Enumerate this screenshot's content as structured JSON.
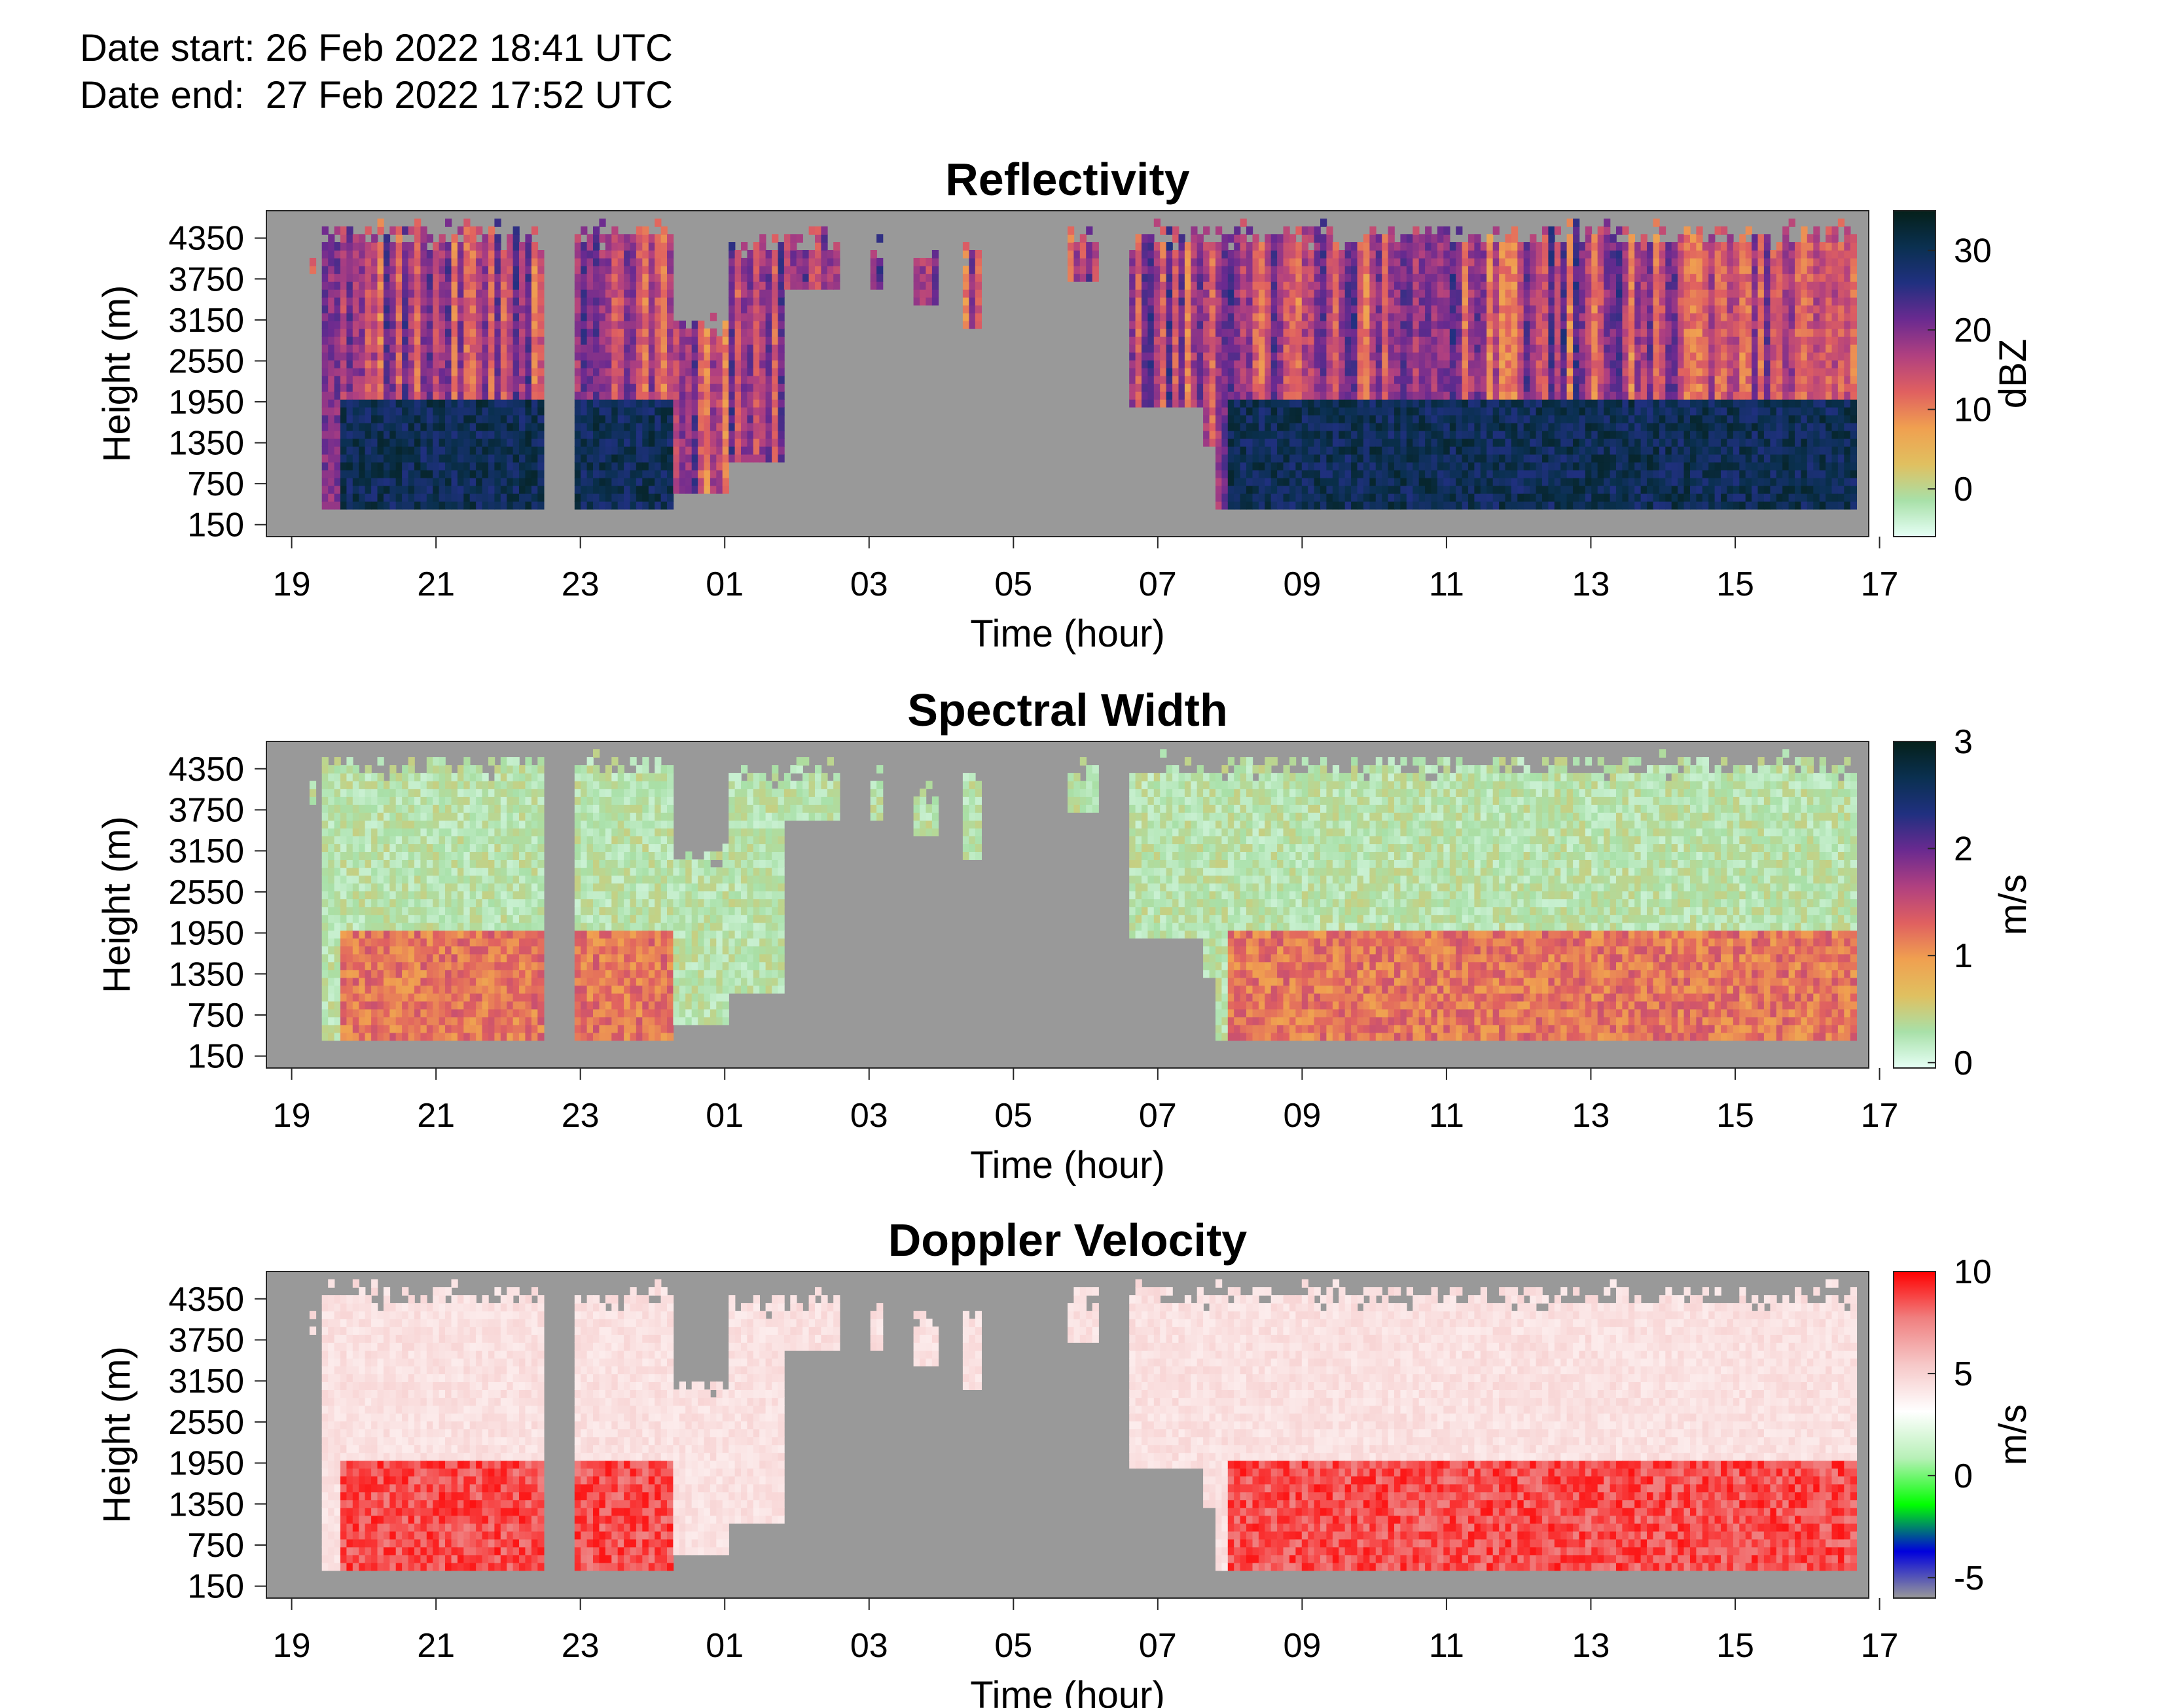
{
  "header": {
    "date_start": "Date start: 26 Feb 2022 18:41 UTC",
    "date_end": "Date end:  27 Feb 2022 17:52 UTC"
  },
  "chart_data": [
    {
      "type": "heatmap",
      "title": "Reflectivity",
      "xlabel": "Time (hour)",
      "ylabel": "Height (m)",
      "colorbar_label": "dBZ",
      "x_ticks": [
        "19",
        "21",
        "23",
        "01",
        "03",
        "05",
        "07",
        "09",
        "11",
        "13",
        "15",
        "17"
      ],
      "y_ticks": [
        "150",
        "750",
        "1350",
        "1950",
        "2550",
        "3150",
        "3750",
        "4350"
      ],
      "colorbar_ticks": [
        "0",
        "10",
        "20",
        "30"
      ],
      "colorbar_range": [
        -6,
        35
      ],
      "colormap": [
        "#e6fff6",
        "#a8e0a8",
        "#e0c060",
        "#f0a050",
        "#e06060",
        "#b04080",
        "#6a2a90",
        "#203080",
        "#0a3050",
        "#05201a"
      ],
      "background_color": "#999999"
    },
    {
      "type": "heatmap",
      "title": "Spectral Width",
      "xlabel": "Time (hour)",
      "ylabel": "Height (m)",
      "colorbar_label": "m/s",
      "x_ticks": [
        "19",
        "21",
        "23",
        "01",
        "03",
        "05",
        "07",
        "09",
        "11",
        "13",
        "15",
        "17"
      ],
      "y_ticks": [
        "150",
        "750",
        "1350",
        "1950",
        "2550",
        "3150",
        "3750",
        "4350"
      ],
      "colorbar_ticks": [
        "0",
        "1",
        "2",
        "3"
      ],
      "colorbar_range": [
        -0.05,
        3
      ],
      "colormap": [
        "#e6fff6",
        "#a8e0a8",
        "#e0c060",
        "#f0a050",
        "#e06060",
        "#b04080",
        "#6a2a90",
        "#203080",
        "#0a3050",
        "#05201a"
      ],
      "background_color": "#999999"
    },
    {
      "type": "heatmap",
      "title": "Doppler Velocity",
      "xlabel": "Time (hour)",
      "ylabel": "Height (m)",
      "colorbar_label": "m/s",
      "x_ticks": [
        "19",
        "21",
        "23",
        "01",
        "03",
        "05",
        "07",
        "09",
        "11",
        "13",
        "15",
        "17"
      ],
      "y_ticks": [
        "150",
        "750",
        "1350",
        "1950",
        "2550",
        "3150",
        "3750",
        "4350"
      ],
      "colorbar_ticks": [
        "-5",
        "0",
        "5",
        "10"
      ],
      "colorbar_range": [
        -6,
        10
      ],
      "colormap": [
        "#999999",
        "#0000dd",
        "#00ff00",
        "#b8f0b8",
        "#ffffff",
        "#f6c8c8",
        "#f08080",
        "#ff0000"
      ],
      "background_color": "#999999"
    }
  ]
}
